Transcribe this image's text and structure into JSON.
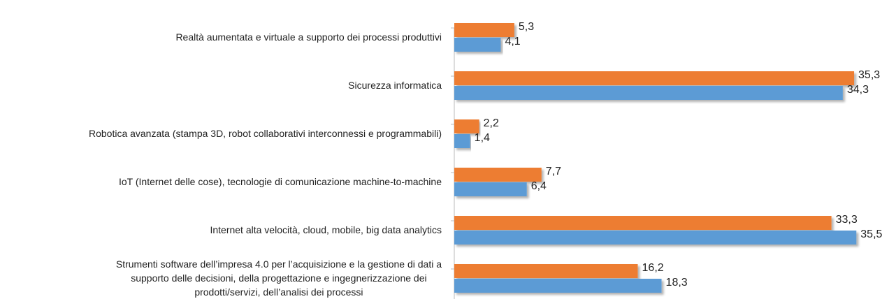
{
  "chart_data": {
    "type": "bar",
    "orientation": "horizontal",
    "categories": [
      "Realtà aumentata e virtuale a supporto dei processi produttivi",
      "Sicurezza informatica",
      "Robotica avanzata (stampa 3D, robot collaborativi interconnessi e programmabili)",
      "IoT (Internet delle cose), tecnologie di comunicazione machine-to-machine",
      "Internet alta velocità, cloud, mobile, big data analytics",
      "Strumenti software dell’impresa 4.0 per l’acquisizione e la gestione di dati a\nsupporto delle decisioni, della progettazione e ingegnerizzazione dei\nprodotti/servizi, dell’analisi dei processi"
    ],
    "series": [
      {
        "color": "#ed7d31",
        "values": [
          5.3,
          35.3,
          2.2,
          7.7,
          33.3,
          16.2
        ],
        "value_labels": [
          "5,3",
          "35,3",
          "2,2",
          "7,7",
          "33,3",
          "16,2"
        ]
      },
      {
        "color": "#5b9bd5",
        "values": [
          4.1,
          34.3,
          1.4,
          6.4,
          35.5,
          18.3
        ],
        "value_labels": [
          "4,1",
          "34,3",
          "1,4",
          "6,4",
          "35,5",
          "18,3"
        ]
      }
    ],
    "xlim": [
      0,
      39
    ]
  }
}
